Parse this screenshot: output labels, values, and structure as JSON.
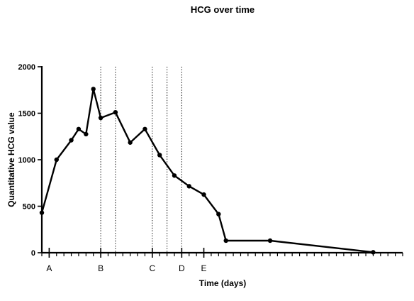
{
  "chart_data": {
    "type": "line",
    "title": "HCG over time",
    "xlabel": "Time (days)",
    "ylabel": "Quantitative HCG value",
    "ylim": [
      0,
      2000
    ],
    "yticks": [
      0,
      500,
      1000,
      1500,
      2000
    ],
    "xlim": [
      0,
      49
    ],
    "grid": false,
    "series": [
      {
        "name": "",
        "color": "#000000",
        "x": [
          0,
          2,
          4,
          5,
          6,
          7,
          8,
          10,
          12,
          14,
          16,
          18,
          20,
          22,
          24,
          25,
          31,
          45
        ],
        "y": [
          430,
          1000,
          1210,
          1330,
          1275,
          1760,
          1450,
          1510,
          1185,
          1330,
          1050,
          830,
          715,
          625,
          415,
          130,
          130,
          5
        ]
      }
    ],
    "event_markers": [
      {
        "x": 8,
        "label": "B"
      },
      {
        "x": 10,
        "label": ""
      },
      {
        "x": 15,
        "label": "C"
      },
      {
        "x": 17,
        "label": ""
      },
      {
        "x": 19,
        "label": "D"
      }
    ],
    "axis_markers": [
      {
        "x": 1,
        "label": "A"
      },
      {
        "x": 8,
        "label": "B"
      },
      {
        "x": 15,
        "label": "C"
      },
      {
        "x": 19,
        "label": "D"
      },
      {
        "x": 22,
        "label": "E"
      }
    ]
  }
}
